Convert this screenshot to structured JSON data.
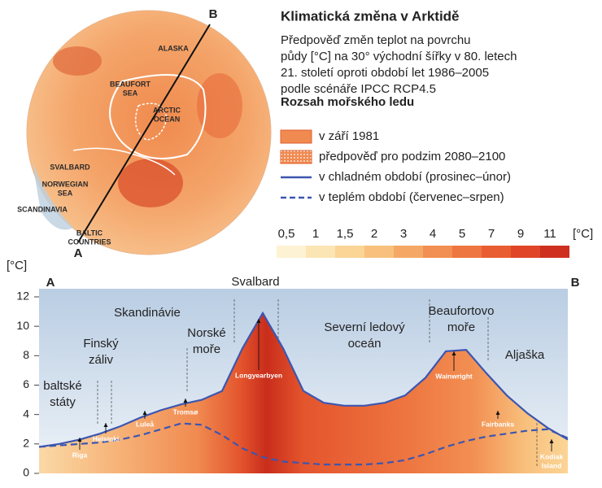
{
  "map": {
    "labels": [
      [
        "ALASKA"
      ],
      [
        "BEAUFORT",
        "SEA"
      ],
      [
        "ARCTIC",
        "OCEAN"
      ],
      [
        "SVALBARD"
      ],
      [
        "NORWEGIAN",
        "SEA"
      ],
      [
        "SCANDINAVIA"
      ],
      [
        "BALTIC",
        "COUNTRIES"
      ]
    ],
    "point_a": "A",
    "point_b": "B"
  },
  "title": "Klimatická změna v Arktidě",
  "description": [
    "Předpověď změn teplot na povrchu",
    "půdy [°C] na 30° východní šířky v 80. letech",
    "21. století oproti období let 1986–2005",
    "podle scénáře IPCC RCP4.5"
  ],
  "ice_heading": "Rozsah mořského ledu",
  "ice_legend": [
    "v září 1981",
    "předpověď pro podzim 2080–2100"
  ],
  "color_scale": {
    "labels": [
      "0,5",
      "1",
      "1,5",
      "2",
      "3",
      "4",
      "5",
      "7",
      "9",
      "11"
    ],
    "unit": "[°C]",
    "colors": [
      "#fdf2d3",
      "#fce5b4",
      "#fbd596",
      "#f8c07c",
      "#f5a866",
      "#f28f52",
      "#ee7641",
      "#e85d31",
      "#df4526",
      "#cf2f1e"
    ]
  },
  "chart_data": {
    "type": "line",
    "y_label": "[°C]",
    "start_label": "A",
    "end_label": "B",
    "categories": [
      null,
      null,
      null,
      null,
      null,
      null,
      null,
      null,
      null,
      null,
      null,
      null,
      null,
      null,
      null,
      null,
      null,
      null,
      null,
      null,
      null,
      null,
      null,
      null,
      null,
      null,
      null
    ],
    "series": [
      {
        "name": "v chladném období (prosinec–únor)",
        "color": "#3c56b0",
        "dash": false,
        "values": [
          1.8,
          2.0,
          2.3,
          2.7,
          3.2,
          3.8,
          4.3,
          4.7,
          5.0,
          5.6,
          8.5,
          10.9,
          8.5,
          5.6,
          4.8,
          4.6,
          4.6,
          4.8,
          5.3,
          6.5,
          8.3,
          8.4,
          6.8,
          5.3,
          4.1,
          3.1,
          2.3
        ]
      },
      {
        "name": "v teplém období (červenec–srpen)",
        "color": "#3c56b0",
        "dash": true,
        "values": [
          1.8,
          1.9,
          2.0,
          2.1,
          2.3,
          2.6,
          3.0,
          3.4,
          3.3,
          2.6,
          1.7,
          1.1,
          0.8,
          0.7,
          0.6,
          0.6,
          0.6,
          0.7,
          0.9,
          1.3,
          1.8,
          2.2,
          2.5,
          2.7,
          2.9,
          3.0,
          2.4
        ]
      }
    ],
    "ylim": [
      0,
      12
    ],
    "yticks": [
      0,
      2,
      4,
      6,
      8,
      10,
      12
    ],
    "grid": false,
    "regions": [
      [
        "baltské",
        "státy"
      ],
      [
        "Finský",
        "záliv"
      ],
      [
        "Skandinávie"
      ],
      [
        "Norské",
        "moře"
      ],
      [
        "Svalbard"
      ],
      [
        "Severní ledový",
        "oceán"
      ],
      [
        "Beaufortovo",
        "moře"
      ],
      [
        "Aljaška"
      ]
    ],
    "places": [
      [
        "Riga"
      ],
      [
        "Helsinki"
      ],
      [
        "Luleå"
      ],
      [
        "Tromsø"
      ],
      [
        "Longyearbyen"
      ],
      [
        "Wainwright"
      ],
      [
        "Fairbanks"
      ],
      [
        "Kodiak",
        "Island"
      ]
    ]
  }
}
